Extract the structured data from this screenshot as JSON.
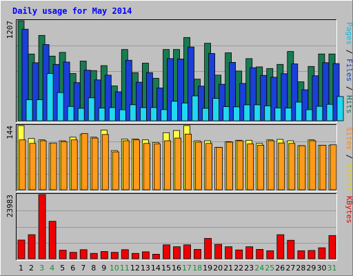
{
  "chart_data": {
    "type": "bar",
    "title": "Daily usage for May 2014",
    "categories": [
      "1",
      "2",
      "3",
      "4",
      "5",
      "6",
      "7",
      "8",
      "9",
      "10",
      "11",
      "12",
      "13",
      "14",
      "15",
      "16",
      "17",
      "18",
      "19",
      "20",
      "21",
      "22",
      "23",
      "24",
      "25",
      "26",
      "27",
      "28",
      "29",
      "30",
      "31"
    ],
    "weekend_days": [
      "3",
      "4",
      "10",
      "11",
      "17",
      "18",
      "24",
      "25",
      "31"
    ],
    "panels": [
      {
        "id": "hits-files-pages",
        "ymax": 1207,
        "ymax_label": "1207",
        "side_label_parts": [
          {
            "text": "Pages",
            "color": "#00c0e0"
          },
          {
            "text": " / ",
            "color": "#000000"
          },
          {
            "text": "Files",
            "color": "#1040c0"
          },
          {
            "text": " / ",
            "color": "#000000"
          },
          {
            "text": "Hits",
            "color": "#107050"
          }
        ],
        "series": [
          {
            "name": "Hits",
            "color": "#1a7a52",
            "values": [
              1207,
              805,
              1030,
              780,
              825,
              570,
              720,
              605,
              665,
              420,
              860,
              580,
              695,
              512,
              860,
              860,
              1005,
              502,
              935,
              550,
              820,
              600,
              750,
              650,
              630,
              680,
              836,
              470,
              655,
              806,
              806
            ]
          },
          {
            "name": "Files",
            "color": "#1a40d8",
            "values": [
              1105,
              700,
              920,
              680,
              708,
              460,
              610,
              493,
              550,
              350,
              730,
              465,
              580,
              395,
              750,
              745,
              890,
              418,
              812,
              440,
              704,
              450,
              640,
              548,
              525,
              568,
              686,
              374,
              543,
              701,
              690
            ]
          },
          {
            "name": "Pages",
            "color": "#22d8f0",
            "values": [
              253,
              253,
              570,
              340,
              172,
              150,
              276,
              152,
              158,
              132,
              193,
              158,
              159,
              134,
              235,
              214,
              300,
              150,
              270,
              170,
              167,
              192,
              192,
              180,
              155,
              153,
              225,
              133,
              174,
              198,
              292
            ]
          }
        ]
      },
      {
        "id": "visits-sites",
        "ymax": 144,
        "ymax_label": "144",
        "side_label_parts": [
          {
            "text": "Sites",
            "color": "#ff8800"
          },
          {
            "text": " / ",
            "color": "#000000"
          },
          {
            "text": "Visits",
            "color": "#e0d000"
          }
        ],
        "series": [
          {
            "name": "Visits",
            "color": "#ffff44",
            "values": [
              144,
              115,
              112,
              104,
              110,
              118,
              124,
              118,
              134,
              88,
              114,
              114,
              112,
              106,
              128,
              133,
              144,
              110,
              110,
              95,
              108,
              111,
              111,
              104,
              112,
              113,
              110,
              99,
              112,
              100,
              100
            ]
          },
          {
            "name": "Sites",
            "color": "#ff9a1a",
            "values": [
              112,
              104,
              110,
              105,
              108,
              112,
              126,
              116,
              124,
              85,
              110,
              112,
              104,
              103,
              110,
              116,
              125,
              107,
              104,
              95,
              107,
              110,
              103,
              100,
              110,
              105,
              104,
              99,
              110,
              100,
              101
            ]
          }
        ]
      },
      {
        "id": "kbytes",
        "ymax": 23983,
        "ymax_label": "23983",
        "side_label_parts": [
          {
            "text": "KBytes",
            "color": "#dd0000"
          }
        ],
        "series": [
          {
            "name": "KBytes",
            "color": "#ee0000",
            "values": [
              7000,
              9000,
              23983,
              14000,
              3200,
              2400,
              3400,
              2000,
              2700,
              2400,
              3400,
              2000,
              2600,
              1700,
              5200,
              4500,
              5200,
              3500,
              7600,
              5400,
              4500,
              3300,
              4500,
              3500,
              3000,
              9000,
              6900,
              3000,
              3100,
              4100,
              8700
            ]
          }
        ]
      }
    ]
  }
}
